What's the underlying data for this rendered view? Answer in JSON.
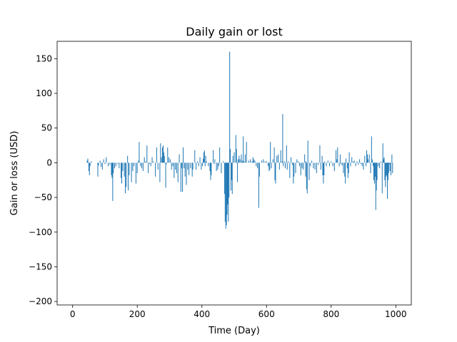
{
  "chart_data": {
    "type": "bar",
    "title": "Daily gain or lost",
    "xlabel": "Time (Day)",
    "ylabel": "Gain or loss (USD)",
    "xlim": [
      -48,
      1048
    ],
    "ylim": [
      -205,
      175
    ],
    "xticks": [
      0,
      200,
      400,
      600,
      800,
      1000
    ],
    "yticks": [
      -200,
      -150,
      -100,
      -50,
      0,
      50,
      100,
      150
    ],
    "grid": false,
    "bar_color": "#1f77b4",
    "series": [
      {
        "values": [
          [
            45,
            3
          ],
          [
            47,
            6
          ],
          [
            50,
            -12
          ],
          [
            52,
            -18
          ],
          [
            54,
            -5
          ],
          [
            58,
            2
          ],
          [
            78,
            -20
          ],
          [
            80,
            -4
          ],
          [
            85,
            3
          ],
          [
            88,
            -6
          ],
          [
            92,
            -10
          ],
          [
            96,
            5
          ],
          [
            100,
            -2
          ],
          [
            104,
            8
          ],
          [
            110,
            -5
          ],
          [
            115,
            -3
          ],
          [
            120,
            -18
          ],
          [
            122,
            -22
          ],
          [
            124,
            -55
          ],
          [
            126,
            -15
          ],
          [
            130,
            -8
          ],
          [
            134,
            -5
          ],
          [
            140,
            -2
          ],
          [
            144,
            -8
          ],
          [
            150,
            -22
          ],
          [
            152,
            -30
          ],
          [
            155,
            -12
          ],
          [
            160,
            -20
          ],
          [
            163,
            -44
          ],
          [
            166,
            -35
          ],
          [
            170,
            10
          ],
          [
            172,
            -40
          ],
          [
            175,
            -18
          ],
          [
            182,
            -28
          ],
          [
            186,
            -12
          ],
          [
            190,
            -5
          ],
          [
            196,
            -30
          ],
          [
            200,
            -15
          ],
          [
            204,
            3
          ],
          [
            206,
            30
          ],
          [
            210,
            -5
          ],
          [
            214,
            -8
          ],
          [
            218,
            -12
          ],
          [
            222,
            8
          ],
          [
            226,
            2
          ],
          [
            230,
            25
          ],
          [
            234,
            -15
          ],
          [
            238,
            -2
          ],
          [
            242,
            -5
          ],
          [
            246,
            8
          ],
          [
            250,
            2
          ],
          [
            256,
            -20
          ],
          [
            260,
            22
          ],
          [
            264,
            -10
          ],
          [
            270,
            -28
          ],
          [
            272,
            28
          ],
          [
            275,
            8
          ],
          [
            278,
            22
          ],
          [
            280,
            25
          ],
          [
            282,
            15
          ],
          [
            284,
            10
          ],
          [
            288,
            -36
          ],
          [
            290,
            -2
          ],
          [
            294,
            22
          ],
          [
            298,
            8
          ],
          [
            302,
            5
          ],
          [
            306,
            -10
          ],
          [
            310,
            -5
          ],
          [
            314,
            -22
          ],
          [
            318,
            -10
          ],
          [
            322,
            -15
          ],
          [
            326,
            -28
          ],
          [
            330,
            12
          ],
          [
            335,
            -42
          ],
          [
            337,
            -8
          ],
          [
            340,
            -42
          ],
          [
            342,
            22
          ],
          [
            345,
            -8
          ],
          [
            348,
            -20
          ],
          [
            352,
            -32
          ],
          [
            356,
            -10
          ],
          [
            360,
            -18
          ],
          [
            365,
            -8
          ],
          [
            370,
            -20
          ],
          [
            372,
            -10
          ],
          [
            378,
            18
          ],
          [
            382,
            -10
          ],
          [
            386,
            2
          ],
          [
            390,
            -5
          ],
          [
            394,
            8
          ],
          [
            398,
            -10
          ],
          [
            402,
            -5
          ],
          [
            404,
            6
          ],
          [
            406,
            15
          ],
          [
            408,
            18
          ],
          [
            410,
            -5
          ],
          [
            412,
            10
          ],
          [
            414,
            2
          ],
          [
            420,
            -5
          ],
          [
            425,
            -12
          ],
          [
            427,
            -25
          ],
          [
            429,
            -18
          ],
          [
            435,
            18
          ],
          [
            438,
            -2
          ],
          [
            440,
            5
          ],
          [
            445,
            -12
          ],
          [
            449,
            -10
          ],
          [
            452,
            -5
          ],
          [
            455,
            22
          ],
          [
            460,
            -15
          ],
          [
            466,
            2
          ],
          [
            470,
            -45
          ],
          [
            472,
            -85
          ],
          [
            474,
            -95
          ],
          [
            476,
            -90
          ],
          [
            478,
            -75
          ],
          [
            480,
            -60
          ],
          [
            482,
            -85
          ],
          [
            484,
            -50
          ],
          [
            486,
            160
          ],
          [
            488,
            20
          ],
          [
            490,
            -40
          ],
          [
            492,
            -25
          ],
          [
            494,
            -45
          ],
          [
            496,
            10
          ],
          [
            500,
            15
          ],
          [
            505,
            40
          ],
          [
            507,
            20
          ],
          [
            510,
            -28
          ],
          [
            512,
            5
          ],
          [
            515,
            10
          ],
          [
            518,
            5
          ],
          [
            522,
            12
          ],
          [
            525,
            3
          ],
          [
            528,
            38
          ],
          [
            530,
            2
          ],
          [
            534,
            12
          ],
          [
            538,
            30
          ],
          [
            545,
            3
          ],
          [
            550,
            5
          ],
          [
            555,
            2
          ],
          [
            558,
            8
          ],
          [
            561,
            5
          ],
          [
            564,
            3
          ],
          [
            568,
            -5
          ],
          [
            572,
            -8
          ],
          [
            576,
            -65
          ],
          [
            578,
            -20
          ],
          [
            585,
            3
          ],
          [
            590,
            5
          ],
          [
            595,
            2
          ],
          [
            600,
            2
          ],
          [
            605,
            -5
          ],
          [
            608,
            -12
          ],
          [
            610,
            -10
          ],
          [
            612,
            30
          ],
          [
            615,
            -8
          ],
          [
            620,
            5
          ],
          [
            624,
            22
          ],
          [
            626,
            -25
          ],
          [
            628,
            -30
          ],
          [
            632,
            10
          ],
          [
            636,
            12
          ],
          [
            640,
            -10
          ],
          [
            644,
            18
          ],
          [
            648,
            2
          ],
          [
            650,
            70
          ],
          [
            652,
            -5
          ],
          [
            655,
            2
          ],
          [
            658,
            -8
          ],
          [
            662,
            25
          ],
          [
            664,
            -10
          ],
          [
            668,
            2
          ],
          [
            672,
            -22
          ],
          [
            676,
            8
          ],
          [
            680,
            -3
          ],
          [
            683,
            -30
          ],
          [
            685,
            -20
          ],
          [
            690,
            -15
          ],
          [
            694,
            5
          ],
          [
            698,
            2
          ],
          [
            702,
            -5
          ],
          [
            706,
            -18
          ],
          [
            710,
            -8
          ],
          [
            714,
            -10
          ],
          [
            718,
            12
          ],
          [
            721,
            -20
          ],
          [
            722,
            2
          ],
          [
            724,
            -38
          ],
          [
            726,
            -44
          ],
          [
            728,
            32
          ],
          [
            732,
            -25
          ],
          [
            736,
            -5
          ],
          [
            740,
            3
          ],
          [
            745,
            -8
          ],
          [
            750,
            -10
          ],
          [
            755,
            -15
          ],
          [
            760,
            -3
          ],
          [
            765,
            25
          ],
          [
            768,
            -10
          ],
          [
            772,
            10
          ],
          [
            774,
            -18
          ],
          [
            776,
            -30
          ],
          [
            778,
            -18
          ],
          [
            780,
            2
          ],
          [
            785,
            -5
          ],
          [
            790,
            3
          ],
          [
            795,
            -5
          ],
          [
            800,
            2
          ],
          [
            805,
            -5
          ],
          [
            810,
            -12
          ],
          [
            815,
            18
          ],
          [
            818,
            5
          ],
          [
            820,
            22
          ],
          [
            825,
            -5
          ],
          [
            828,
            12
          ],
          [
            830,
            -2
          ],
          [
            834,
            -4
          ],
          [
            838,
            -15
          ],
          [
            842,
            -20
          ],
          [
            844,
            -30
          ],
          [
            846,
            6
          ],
          [
            850,
            -8
          ],
          [
            852,
            -22
          ],
          [
            854,
            -15
          ],
          [
            856,
            15
          ],
          [
            860,
            -5
          ],
          [
            864,
            8
          ],
          [
            868,
            2
          ],
          [
            872,
            3
          ],
          [
            876,
            -5
          ],
          [
            880,
            2
          ],
          [
            884,
            -3
          ],
          [
            888,
            5
          ],
          [
            892,
            -2
          ],
          [
            896,
            -5
          ],
          [
            900,
            -10
          ],
          [
            904,
            10
          ],
          [
            908,
            -5
          ],
          [
            910,
            18
          ],
          [
            912,
            12
          ],
          [
            914,
            5
          ],
          [
            918,
            12
          ],
          [
            922,
            -15
          ],
          [
            925,
            38
          ],
          [
            927,
            5
          ],
          [
            930,
            -5
          ],
          [
            932,
            -25
          ],
          [
            934,
            -30
          ],
          [
            936,
            -20
          ],
          [
            938,
            -68
          ],
          [
            940,
            -40
          ],
          [
            942,
            -25
          ],
          [
            946,
            -5
          ],
          [
            950,
            -8
          ],
          [
            954,
            2
          ],
          [
            958,
            -44
          ],
          [
            960,
            28
          ],
          [
            962,
            5
          ],
          [
            964,
            8
          ],
          [
            966,
            -25
          ],
          [
            968,
            -35
          ],
          [
            970,
            -20
          ],
          [
            972,
            -18
          ],
          [
            974,
            -52
          ],
          [
            976,
            -25
          ],
          [
            978,
            -15
          ],
          [
            980,
            -2
          ],
          [
            982,
            -12
          ],
          [
            985,
            -18
          ],
          [
            988,
            12
          ],
          [
            990,
            -15
          ]
        ]
      }
    ]
  }
}
